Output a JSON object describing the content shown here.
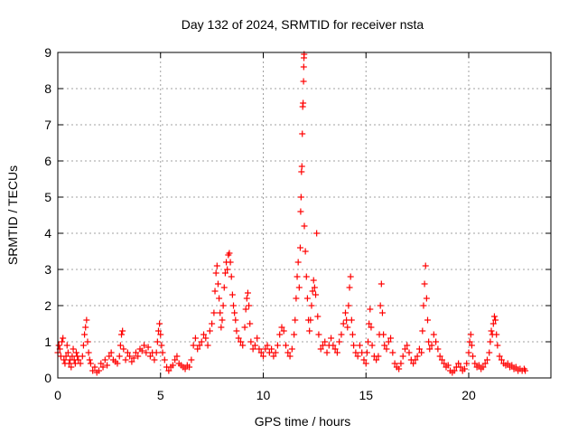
{
  "chart_data": {
    "type": "scatter",
    "title": "Day 132 of 2024, SRMTID for receiver nsta",
    "xlabel": "GPS time / hours",
    "ylabel": "SRMTID / TECUs",
    "xlim": [
      0,
      24
    ],
    "ylim": [
      0,
      9
    ],
    "x_ticks": [
      0,
      5,
      10,
      15,
      20
    ],
    "y_ticks": [
      0,
      1,
      2,
      3,
      4,
      5,
      6,
      7,
      8,
      9
    ],
    "grid": true,
    "marker": "+",
    "series": [
      {
        "name": "SRMTID",
        "color": "#ff0000",
        "points": [
          [
            0.0,
            0.7
          ],
          [
            0.05,
            0.9
          ],
          [
            0.1,
            0.8
          ],
          [
            0.15,
            0.6
          ],
          [
            0.2,
            1.0
          ],
          [
            0.25,
            1.1
          ],
          [
            0.3,
            0.5
          ],
          [
            0.35,
            0.4
          ],
          [
            0.4,
            0.6
          ],
          [
            0.45,
            0.9
          ],
          [
            0.5,
            0.7
          ],
          [
            0.55,
            0.4
          ],
          [
            0.6,
            0.5
          ],
          [
            0.65,
            0.3
          ],
          [
            0.7,
            0.6
          ],
          [
            0.75,
            0.8
          ],
          [
            0.8,
            0.5
          ],
          [
            0.85,
            0.4
          ],
          [
            0.9,
            0.7
          ],
          [
            0.95,
            0.6
          ],
          [
            1.0,
            0.5
          ],
          [
            1.1,
            0.4
          ],
          [
            1.2,
            0.6
          ],
          [
            1.25,
            0.9
          ],
          [
            1.3,
            1.2
          ],
          [
            1.35,
            1.4
          ],
          [
            1.4,
            1.6
          ],
          [
            1.45,
            1.0
          ],
          [
            1.5,
            0.7
          ],
          [
            1.55,
            0.5
          ],
          [
            1.6,
            0.4
          ],
          [
            1.7,
            0.2
          ],
          [
            1.8,
            0.3
          ],
          [
            1.9,
            0.15
          ],
          [
            2.0,
            0.2
          ],
          [
            2.1,
            0.4
          ],
          [
            2.2,
            0.3
          ],
          [
            2.3,
            0.5
          ],
          [
            2.4,
            0.35
          ],
          [
            2.5,
            0.6
          ],
          [
            2.6,
            0.7
          ],
          [
            2.7,
            0.5
          ],
          [
            2.8,
            0.45
          ],
          [
            2.9,
            0.4
          ],
          [
            3.0,
            0.6
          ],
          [
            3.05,
            0.9
          ],
          [
            3.1,
            1.2
          ],
          [
            3.15,
            1.3
          ],
          [
            3.2,
            0.8
          ],
          [
            3.3,
            0.5
          ],
          [
            3.4,
            0.7
          ],
          [
            3.5,
            0.6
          ],
          [
            3.6,
            0.45
          ],
          [
            3.7,
            0.55
          ],
          [
            3.8,
            0.7
          ],
          [
            3.9,
            0.6
          ],
          [
            4.0,
            0.8
          ],
          [
            4.1,
            0.75
          ],
          [
            4.2,
            0.9
          ],
          [
            4.3,
            0.7
          ],
          [
            4.4,
            0.85
          ],
          [
            4.5,
            0.6
          ],
          [
            4.6,
            0.7
          ],
          [
            4.7,
            0.5
          ],
          [
            4.8,
            0.7
          ],
          [
            4.85,
            1.0
          ],
          [
            4.9,
            1.3
          ],
          [
            4.95,
            1.5
          ],
          [
            5.0,
            1.2
          ],
          [
            5.05,
            0.9
          ],
          [
            5.1,
            0.7
          ],
          [
            5.2,
            0.5
          ],
          [
            5.3,
            0.3
          ],
          [
            5.4,
            0.2
          ],
          [
            5.5,
            0.3
          ],
          [
            5.6,
            0.35
          ],
          [
            5.7,
            0.5
          ],
          [
            5.8,
            0.6
          ],
          [
            5.9,
            0.4
          ],
          [
            6.0,
            0.35
          ],
          [
            6.1,
            0.3
          ],
          [
            6.2,
            0.25
          ],
          [
            6.3,
            0.35
          ],
          [
            6.4,
            0.3
          ],
          [
            6.5,
            0.5
          ],
          [
            6.6,
            0.9
          ],
          [
            6.7,
            1.1
          ],
          [
            6.8,
            0.8
          ],
          [
            6.9,
            0.9
          ],
          [
            7.0,
            1.0
          ],
          [
            7.1,
            1.2
          ],
          [
            7.2,
            1.1
          ],
          [
            7.3,
            0.9
          ],
          [
            7.4,
            1.3
          ],
          [
            7.5,
            1.5
          ],
          [
            7.6,
            1.8
          ],
          [
            7.65,
            2.4
          ],
          [
            7.7,
            2.9
          ],
          [
            7.75,
            3.1
          ],
          [
            7.8,
            2.6
          ],
          [
            7.85,
            2.2
          ],
          [
            7.9,
            1.8
          ],
          [
            7.95,
            1.4
          ],
          [
            8.0,
            1.6
          ],
          [
            8.05,
            2.0
          ],
          [
            8.1,
            2.5
          ],
          [
            8.15,
            2.9
          ],
          [
            8.2,
            3.2
          ],
          [
            8.25,
            3.0
          ],
          [
            8.3,
            3.4
          ],
          [
            8.35,
            3.45
          ],
          [
            8.4,
            3.2
          ],
          [
            8.45,
            2.8
          ],
          [
            8.5,
            2.3
          ],
          [
            8.55,
            2.0
          ],
          [
            8.6,
            1.8
          ],
          [
            8.65,
            1.6
          ],
          [
            8.7,
            1.3
          ],
          [
            8.8,
            1.1
          ],
          [
            8.9,
            1.0
          ],
          [
            9.0,
            0.9
          ],
          [
            9.1,
            1.4
          ],
          [
            9.15,
            1.9
          ],
          [
            9.2,
            2.2
          ],
          [
            9.25,
            2.35
          ],
          [
            9.3,
            2.0
          ],
          [
            9.35,
            1.5
          ],
          [
            9.4,
            1.0
          ],
          [
            9.5,
            0.8
          ],
          [
            9.6,
            0.9
          ],
          [
            9.7,
            1.1
          ],
          [
            9.8,
            0.8
          ],
          [
            9.9,
            0.7
          ],
          [
            10.0,
            0.6
          ],
          [
            10.1,
            0.8
          ],
          [
            10.2,
            0.9
          ],
          [
            10.3,
            0.7
          ],
          [
            10.4,
            0.8
          ],
          [
            10.5,
            0.6
          ],
          [
            10.6,
            0.7
          ],
          [
            10.7,
            0.9
          ],
          [
            10.8,
            1.2
          ],
          [
            10.9,
            1.4
          ],
          [
            11.0,
            1.3
          ],
          [
            11.1,
            0.9
          ],
          [
            11.2,
            0.7
          ],
          [
            11.3,
            0.6
          ],
          [
            11.4,
            0.8
          ],
          [
            11.5,
            1.2
          ],
          [
            11.55,
            1.6
          ],
          [
            11.6,
            2.2
          ],
          [
            11.65,
            2.8
          ],
          [
            11.7,
            3.2
          ],
          [
            11.75,
            2.5
          ],
          [
            11.8,
            3.6
          ],
          [
            11.82,
            4.6
          ],
          [
            11.84,
            5.0
          ],
          [
            11.86,
            5.7
          ],
          [
            11.88,
            5.85
          ],
          [
            11.9,
            6.75
          ],
          [
            11.92,
            7.5
          ],
          [
            11.94,
            7.6
          ],
          [
            11.96,
            8.2
          ],
          [
            11.97,
            8.6
          ],
          [
            11.98,
            8.85
          ],
          [
            11.99,
            8.95
          ],
          [
            12.0,
            4.2
          ],
          [
            12.05,
            3.5
          ],
          [
            12.1,
            2.8
          ],
          [
            12.15,
            2.2
          ],
          [
            12.2,
            1.6
          ],
          [
            12.25,
            1.3
          ],
          [
            12.3,
            1.6
          ],
          [
            12.35,
            2.0
          ],
          [
            12.4,
            2.4
          ],
          [
            12.45,
            2.7
          ],
          [
            12.5,
            2.5
          ],
          [
            12.55,
            2.3
          ],
          [
            12.6,
            4.0
          ],
          [
            12.65,
            1.7
          ],
          [
            12.7,
            1.2
          ],
          [
            12.8,
            0.8
          ],
          [
            12.9,
            0.9
          ],
          [
            13.0,
            1.0
          ],
          [
            13.1,
            0.7
          ],
          [
            13.2,
            0.9
          ],
          [
            13.3,
            1.1
          ],
          [
            13.4,
            0.9
          ],
          [
            13.5,
            0.8
          ],
          [
            13.6,
            0.7
          ],
          [
            13.7,
            1.0
          ],
          [
            13.8,
            1.2
          ],
          [
            13.9,
            1.5
          ],
          [
            14.0,
            1.8
          ],
          [
            14.05,
            1.6
          ],
          [
            14.1,
            1.4
          ],
          [
            14.15,
            2.0
          ],
          [
            14.2,
            2.5
          ],
          [
            14.25,
            2.8
          ],
          [
            14.3,
            1.6
          ],
          [
            14.35,
            1.2
          ],
          [
            14.4,
            0.9
          ],
          [
            14.5,
            0.7
          ],
          [
            14.6,
            0.6
          ],
          [
            14.7,
            0.9
          ],
          [
            14.8,
            0.7
          ],
          [
            14.9,
            0.5
          ],
          [
            15.0,
            0.4
          ],
          [
            15.05,
            0.7
          ],
          [
            15.1,
            1.0
          ],
          [
            15.15,
            1.5
          ],
          [
            15.2,
            1.9
          ],
          [
            15.25,
            1.4
          ],
          [
            15.3,
            0.9
          ],
          [
            15.4,
            0.6
          ],
          [
            15.5,
            0.5
          ],
          [
            15.6,
            0.6
          ],
          [
            15.65,
            1.2
          ],
          [
            15.7,
            2.0
          ],
          [
            15.75,
            2.6
          ],
          [
            15.8,
            1.8
          ],
          [
            15.85,
            1.2
          ],
          [
            15.9,
            0.9
          ],
          [
            16.0,
            0.8
          ],
          [
            16.1,
            1.0
          ],
          [
            16.2,
            1.1
          ],
          [
            16.3,
            0.7
          ],
          [
            16.4,
            0.4
          ],
          [
            16.5,
            0.3
          ],
          [
            16.6,
            0.25
          ],
          [
            16.7,
            0.4
          ],
          [
            16.8,
            0.6
          ],
          [
            16.9,
            0.8
          ],
          [
            17.0,
            0.9
          ],
          [
            17.1,
            0.7
          ],
          [
            17.2,
            0.5
          ],
          [
            17.3,
            0.4
          ],
          [
            17.4,
            0.5
          ],
          [
            17.5,
            0.6
          ],
          [
            17.6,
            0.8
          ],
          [
            17.7,
            0.7
          ],
          [
            17.75,
            1.3
          ],
          [
            17.8,
            2.0
          ],
          [
            17.85,
            2.6
          ],
          [
            17.9,
            3.1
          ],
          [
            17.95,
            2.2
          ],
          [
            18.0,
            1.6
          ],
          [
            18.05,
            1.0
          ],
          [
            18.1,
            0.8
          ],
          [
            18.2,
            0.9
          ],
          [
            18.3,
            1.2
          ],
          [
            18.4,
            1.0
          ],
          [
            18.5,
            0.8
          ],
          [
            18.6,
            0.6
          ],
          [
            18.7,
            0.5
          ],
          [
            18.8,
            0.4
          ],
          [
            18.9,
            0.3
          ],
          [
            19.0,
            0.35
          ],
          [
            19.1,
            0.2
          ],
          [
            19.2,
            0.15
          ],
          [
            19.3,
            0.2
          ],
          [
            19.4,
            0.3
          ],
          [
            19.5,
            0.4
          ],
          [
            19.6,
            0.3
          ],
          [
            19.7,
            0.2
          ],
          [
            19.8,
            0.25
          ],
          [
            19.9,
            0.4
          ],
          [
            20.0,
            0.7
          ],
          [
            20.05,
            1.0
          ],
          [
            20.1,
            1.2
          ],
          [
            20.15,
            0.9
          ],
          [
            20.2,
            0.6
          ],
          [
            20.3,
            0.4
          ],
          [
            20.4,
            0.3
          ],
          [
            20.5,
            0.35
          ],
          [
            20.6,
            0.25
          ],
          [
            20.7,
            0.3
          ],
          [
            20.8,
            0.4
          ],
          [
            20.9,
            0.5
          ],
          [
            21.0,
            0.7
          ],
          [
            21.05,
            1.0
          ],
          [
            21.1,
            1.3
          ],
          [
            21.15,
            1.2
          ],
          [
            21.2,
            1.5
          ],
          [
            21.25,
            1.7
          ],
          [
            21.3,
            1.6
          ],
          [
            21.35,
            1.2
          ],
          [
            21.4,
            0.9
          ],
          [
            21.5,
            0.6
          ],
          [
            21.6,
            0.5
          ],
          [
            21.7,
            0.4
          ],
          [
            21.8,
            0.35
          ],
          [
            21.9,
            0.4
          ],
          [
            22.0,
            0.3
          ],
          [
            22.1,
            0.35
          ],
          [
            22.2,
            0.25
          ],
          [
            22.3,
            0.3
          ],
          [
            22.4,
            0.2
          ],
          [
            22.5,
            0.25
          ],
          [
            22.6,
            0.2
          ],
          [
            22.7,
            0.25
          ],
          [
            22.75,
            0.2
          ]
        ]
      }
    ]
  }
}
